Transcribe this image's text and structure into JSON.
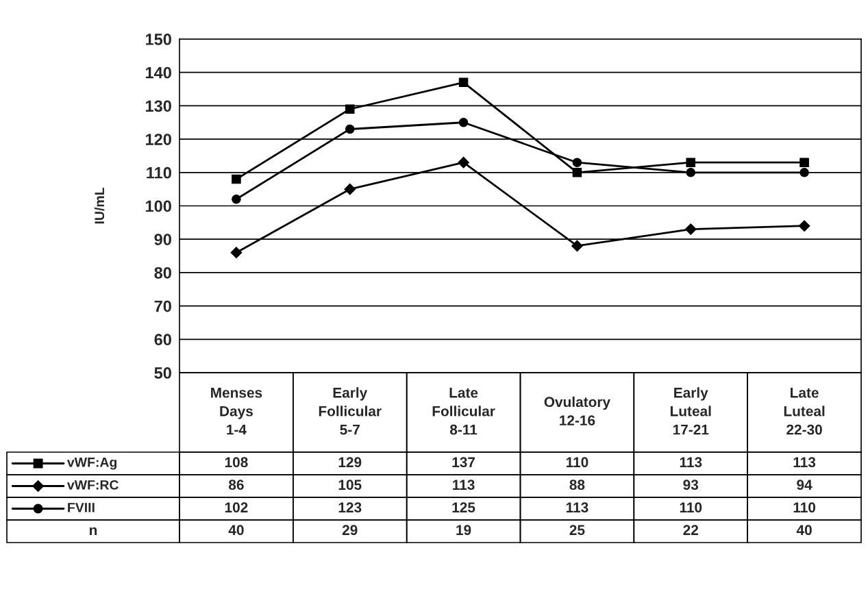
{
  "chart_data": {
    "type": "line",
    "ylabel": "IU/mL",
    "categories": [
      "Menses\nDays\n1-4",
      "Early\nFollicular\n5-7",
      "Late\nFollicular\n8-11",
      "Ovulatory\n12-16",
      "Early\nLuteal\n17-21",
      "Late\nLuteal\n22-30"
    ],
    "series": [
      {
        "name": "vWF:Ag",
        "color": "#000000",
        "marker": "square",
        "values": [
          108,
          129,
          137,
          110,
          113,
          113
        ]
      },
      {
        "name": "vWF:RC",
        "color": "#000000",
        "marker": "diamond",
        "values": [
          86,
          105,
          113,
          88,
          93,
          94
        ]
      },
      {
        "name": "FVIII",
        "color": "#000000",
        "marker": "circle",
        "values": [
          102,
          123,
          125,
          113,
          110,
          110
        ]
      }
    ],
    "ylim": [
      50,
      150
    ],
    "yticks": [
      50,
      60,
      70,
      80,
      90,
      100,
      110,
      120,
      130,
      140,
      150
    ],
    "grid": "y",
    "legend": "bottom",
    "data_labels": true,
    "line_style": "solid",
    "annotations": [
      "n",
      "40",
      "29",
      "19",
      "25",
      "22",
      "40"
    ]
  }
}
